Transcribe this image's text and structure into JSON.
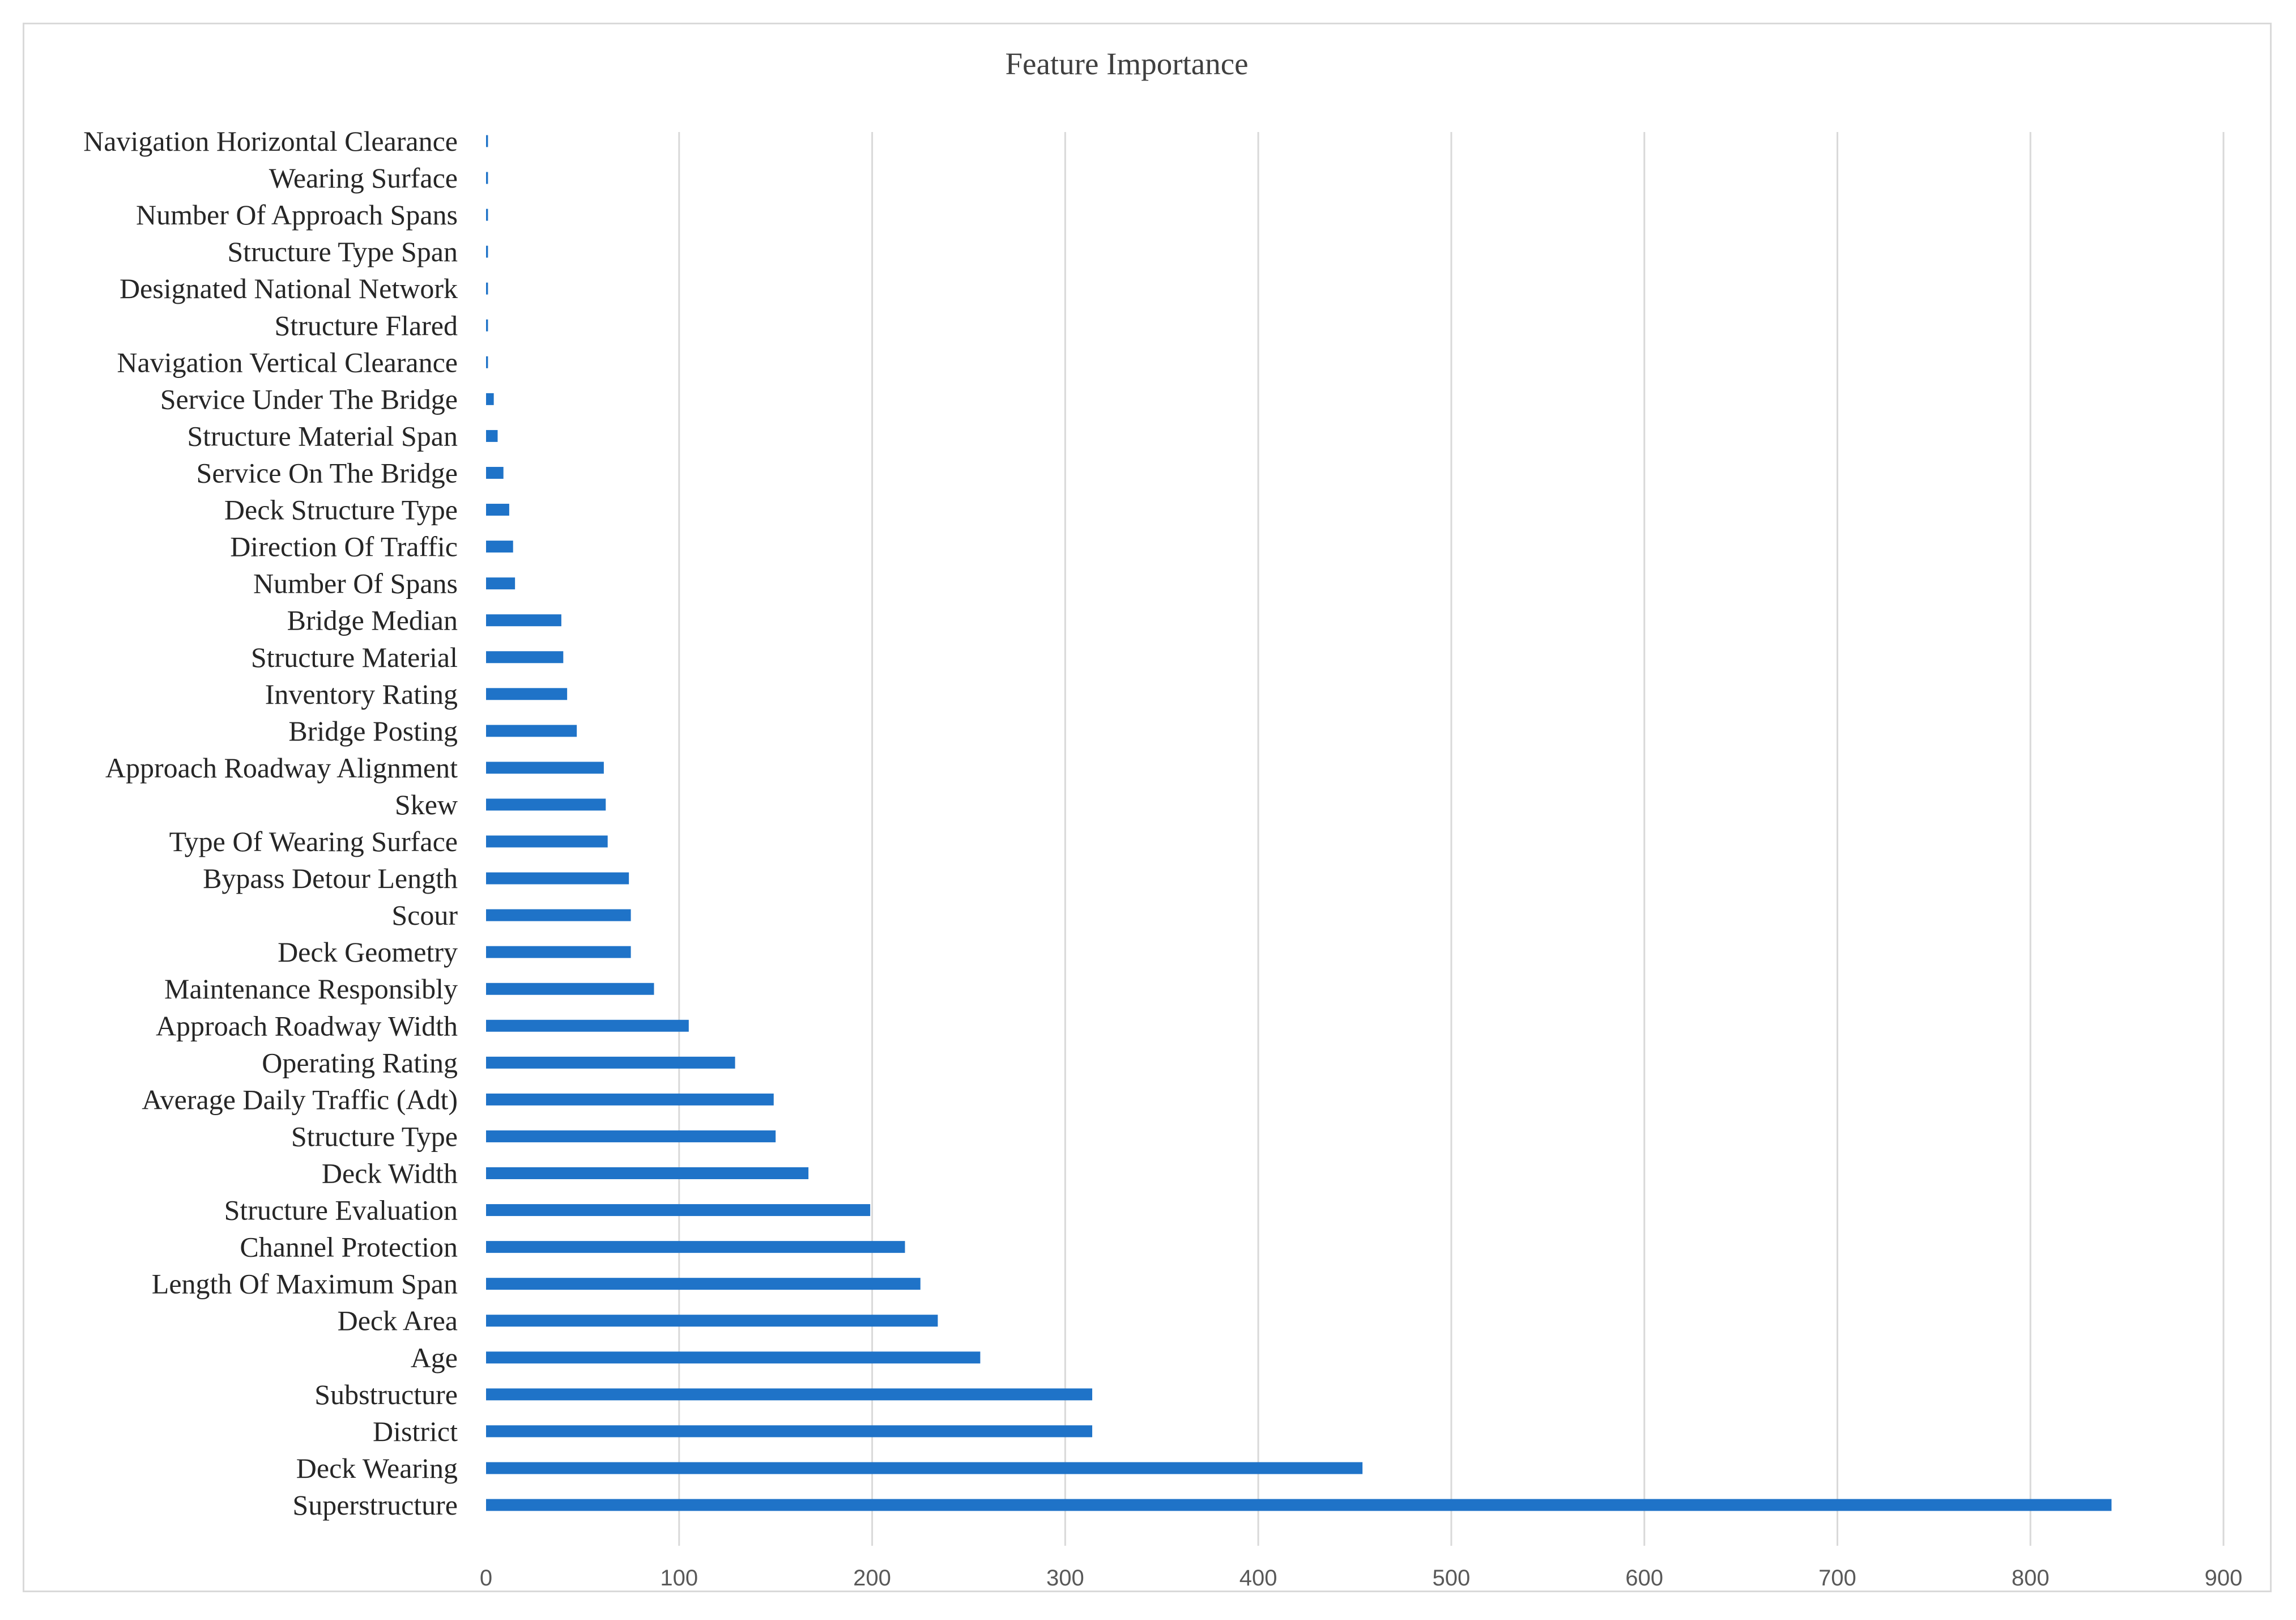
{
  "chart_data": {
    "type": "bar",
    "orientation": "horizontal",
    "title": "Feature Importance",
    "xlabel": "",
    "ylabel": "",
    "xlim": [
      0,
      900
    ],
    "x_ticks": [
      0,
      100,
      200,
      300,
      400,
      500,
      600,
      700,
      800,
      900
    ],
    "grid": "vertical",
    "legend": "none",
    "bar_color": "#1f73c8",
    "categories": [
      "Navigation Horizontal Clearance",
      "Wearing Surface",
      "Number Of Approach Spans",
      "Structure Type Span",
      "Designated National Network",
      "Structure Flared",
      "Navigation Vertical Clearance",
      "Service Under The Bridge",
      "Structure Material Span",
      "Service On The Bridge",
      "Deck Structure Type",
      "Direction Of Traffic",
      "Number Of Spans",
      "Bridge Median",
      "Structure Material",
      "Inventory Rating",
      "Bridge Posting",
      "Approach Roadway Alignment",
      "Skew",
      "Type Of Wearing Surface",
      "Bypass Detour Length",
      "Scour",
      "Deck Geometry",
      "Maintenance Responsibly",
      "Approach Roadway Width",
      "Operating Rating",
      "Average Daily Traffic (Adt)",
      "Structure Type",
      "Deck Width",
      "Structure Evaluation",
      "Channel Protection",
      "Length Of Maximum Span",
      "Deck Area",
      "Age",
      "Substructure",
      "District",
      "Deck Wearing",
      "Superstructure"
    ],
    "values": [
      1,
      1,
      1,
      1,
      1,
      1,
      1,
      4,
      6,
      9,
      12,
      14,
      15,
      39,
      40,
      42,
      47,
      61,
      62,
      63,
      74,
      75,
      75,
      87,
      105,
      129,
      149,
      150,
      167,
      199,
      217,
      225,
      234,
      256,
      314,
      314,
      454,
      842
    ]
  }
}
